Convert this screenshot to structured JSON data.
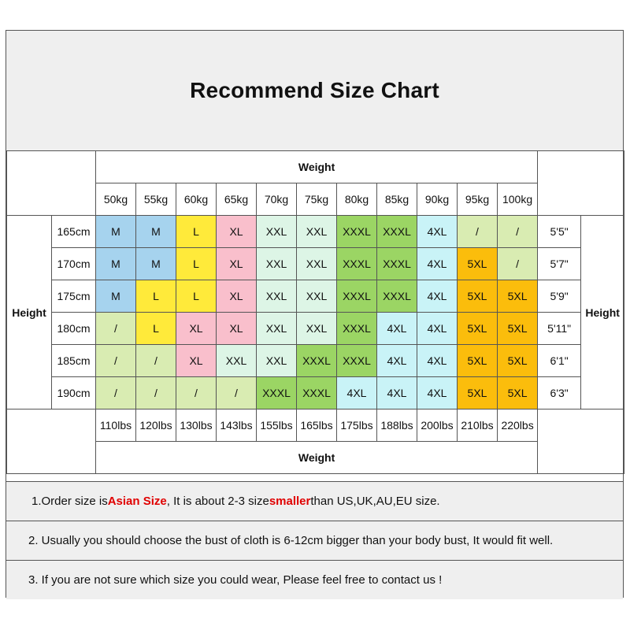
{
  "title": "Recommend Size Chart",
  "weight_label": "Weight",
  "height_label": "Height",
  "weights_kg": [
    "50kg",
    "55kg",
    "60kg",
    "65kg",
    "70kg",
    "75kg",
    "80kg",
    "85kg",
    "90kg",
    "95kg",
    "100kg"
  ],
  "weights_lbs": [
    "110lbs",
    "120lbs",
    "130lbs",
    "143lbs",
    "155lbs",
    "165lbs",
    "175lbs",
    "188lbs",
    "200lbs",
    "210lbs",
    "220lbs"
  ],
  "rows": [
    {
      "cm": "165cm",
      "ft": "5'5\"",
      "sizes": [
        "M",
        "M",
        "L",
        "XL",
        "XXL",
        "XXL",
        "XXXL",
        "XXXL",
        "4XL",
        "/",
        "/"
      ]
    },
    {
      "cm": "170cm",
      "ft": "5'7\"",
      "sizes": [
        "M",
        "M",
        "L",
        "XL",
        "XXL",
        "XXL",
        "XXXL",
        "XXXL",
        "4XL",
        "5XL",
        "/"
      ]
    },
    {
      "cm": "175cm",
      "ft": "5'9\"",
      "sizes": [
        "M",
        "L",
        "L",
        "XL",
        "XXL",
        "XXL",
        "XXXL",
        "XXXL",
        "4XL",
        "5XL",
        "5XL"
      ]
    },
    {
      "cm": "180cm",
      "ft": "5'11\"",
      "sizes": [
        "/",
        "L",
        "XL",
        "XL",
        "XXL",
        "XXL",
        "XXXL",
        "4XL",
        "4XL",
        "5XL",
        "5XL"
      ]
    },
    {
      "cm": "185cm",
      "ft": "6'1\"",
      "sizes": [
        "/",
        "/",
        "XL",
        "XXL",
        "XXL",
        "XXXL",
        "XXXL",
        "4XL",
        "4XL",
        "5XL",
        "5XL"
      ]
    },
    {
      "cm": "190cm",
      "ft": "6'3\"",
      "sizes": [
        "/",
        "/",
        "/",
        "/",
        "XXXL",
        "XXXL",
        "4XL",
        "4XL",
        "4XL",
        "5XL",
        "5XL"
      ]
    }
  ],
  "size_colors": {
    "M": "#a6d3ee",
    "L": "#ffea3a",
    "XL": "#f9bfcc",
    "XXL": "#ddf5e6",
    "XXXL": "#9bd564",
    "4XL": "#c9f3f7",
    "5XL": "#fbbd0c",
    "/": "#d9ecb2"
  },
  "notes": {
    "n1": {
      "a": "1.Order size is ",
      "b": "Asian Size",
      "c": ", It is about 2-3 size ",
      "d": "smaller",
      "e": " than US,UK,AU,EU size."
    },
    "n2": "2. Usually you should choose the bust of cloth is 6-12cm bigger than your body bust, It would fit well.",
    "n3": "3. If you are not sure which size you could wear, Please feel free to contact us !"
  },
  "accent_red": "#e00000"
}
